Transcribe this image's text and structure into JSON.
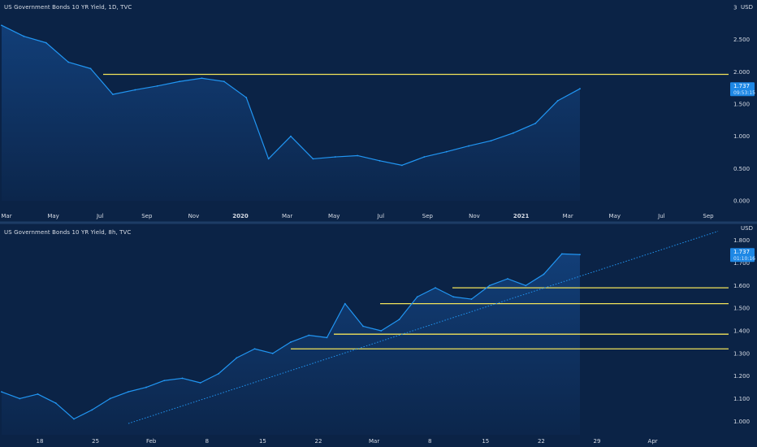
{
  "colors": {
    "background": "#0b2346",
    "line": "#2196f3",
    "fill": "#1a5fb4",
    "resistance": "#f2e35a",
    "text": "#d8dde6",
    "divider": "#1d3c66",
    "price_badge": "#1e88e5"
  },
  "chart_data": [
    {
      "type": "area",
      "title": "US Government Bonds 10 YR Yield, 1D, TVC",
      "unit": "USD",
      "ylim": [
        0,
        3
      ],
      "y_ticks": [
        "3",
        "2.500",
        "2.000",
        "1.500",
        "1.000",
        "0.500",
        "0.000"
      ],
      "x_ticks": [
        "Mar",
        "May",
        "Jul",
        "Sep",
        "Nov",
        "2020",
        "Mar",
        "May",
        "Jul",
        "Sep",
        "Nov",
        "2021",
        "Mar",
        "May",
        "Jul",
        "Sep"
      ],
      "x": [
        "2019-03",
        "2019-04",
        "2019-05",
        "2019-06",
        "2019-07",
        "2019-08",
        "2019-09",
        "2019-10",
        "2019-11",
        "2019-12",
        "2020-01",
        "2020-02",
        "2020-03a",
        "2020-03b",
        "2020-04",
        "2020-05",
        "2020-06",
        "2020-07",
        "2020-08",
        "2020-09",
        "2020-10",
        "2020-11",
        "2020-12",
        "2021-01",
        "2021-02",
        "2021-03a",
        "2021-03b"
      ],
      "values": [
        2.72,
        2.55,
        2.45,
        2.15,
        2.05,
        1.65,
        1.72,
        1.78,
        1.85,
        1.9,
        1.85,
        1.6,
        0.65,
        1.0,
        0.65,
        0.68,
        0.7,
        0.62,
        0.55,
        0.68,
        0.76,
        0.85,
        0.93,
        1.05,
        1.2,
        1.55,
        1.737
      ],
      "resistance_level": 1.96,
      "last_price": "1.737",
      "last_price_time": "09:53:15",
      "grid": false
    },
    {
      "type": "area",
      "title": "US Government Bonds 10 YR Yield, 8h, TVC",
      "unit": "USD",
      "ylim": [
        0.94,
        1.86
      ],
      "y_ticks": [
        "1.800",
        "1.700",
        "1.600",
        "1.500",
        "1.400",
        "1.300",
        "1.200",
        "1.100",
        "1.000"
      ],
      "x_ticks": [
        "18",
        "25",
        "Feb",
        "8",
        "15",
        "22",
        "Mar",
        "8",
        "15",
        "22",
        "29",
        "Apr"
      ],
      "x": [
        "Jan-18",
        "Jan-20",
        "Jan-23",
        "Jan-25",
        "Jan-27",
        "Jan-29",
        "Feb-01",
        "Feb-03",
        "Feb-05",
        "Feb-07",
        "Feb-09",
        "Feb-11",
        "Feb-13",
        "Feb-15",
        "Feb-16",
        "Feb-18",
        "Feb-20",
        "Feb-22",
        "Feb-23",
        "Feb-25",
        "Feb-26",
        "Feb-28",
        "Mar-02",
        "Mar-04",
        "Mar-06",
        "Mar-08",
        "Mar-10",
        "Mar-12",
        "Mar-14",
        "Mar-16",
        "Mar-17",
        "Mar-18",
        "Mar-19"
      ],
      "values": [
        1.13,
        1.1,
        1.12,
        1.08,
        1.01,
        1.05,
        1.1,
        1.13,
        1.15,
        1.18,
        1.19,
        1.17,
        1.21,
        1.28,
        1.32,
        1.3,
        1.35,
        1.38,
        1.37,
        1.52,
        1.42,
        1.4,
        1.45,
        1.55,
        1.59,
        1.55,
        1.54,
        1.6,
        1.63,
        1.6,
        1.65,
        1.74,
        1.737
      ],
      "resistance_levels": [
        1.59,
        1.52,
        1.385,
        1.32
      ],
      "trendline": {
        "from": {
          "x": "Jan-28",
          "y": 0.99
        },
        "to": {
          "x": "Apr-02",
          "y": 1.84
        }
      },
      "last_price": "1.737",
      "last_price_time": "01:10:16",
      "grid": false
    }
  ]
}
